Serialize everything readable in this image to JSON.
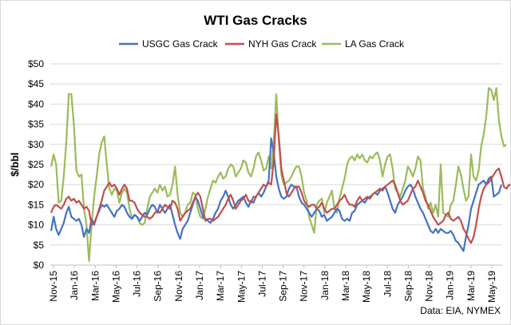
{
  "chart_data": {
    "type": "line",
    "title": "WTI Gas Cracks",
    "ylabel": "$/bbl",
    "xlabel": "",
    "ylim": [
      0,
      50
    ],
    "yticks": [
      0,
      5,
      10,
      15,
      20,
      25,
      30,
      35,
      40,
      45,
      50
    ],
    "ytick_labels": [
      "$0",
      "$5",
      "$10",
      "$15",
      "$20",
      "$25",
      "$30",
      "$35",
      "$40",
      "$45",
      "$50"
    ],
    "x_tick_labels": [
      "Nov-15",
      "Jan-16",
      "Mar-16",
      "May-16",
      "Jul-16",
      "Sep-16",
      "Nov-16",
      "Jan-17",
      "Mar-17",
      "May-17",
      "Jul-17",
      "Sep-17",
      "Nov-17",
      "Jan-18",
      "Mar-18",
      "May-18",
      "Jul-18",
      "Sep-18",
      "Nov-18",
      "Jan-19",
      "Mar-19",
      "May-19"
    ],
    "grid": true,
    "legend": "top",
    "source": "Data: EIA, NYMEX",
    "series": [
      {
        "name": "USGC Gas Crack",
        "color": "#4472c4",
        "values": [
          8.5,
          12,
          9,
          7.5,
          9,
          10.5,
          13,
          14.5,
          12,
          11.5,
          11,
          11.5,
          10,
          7,
          9,
          8,
          11.5,
          10,
          12,
          13.5,
          15,
          14.5,
          15,
          14,
          13,
          12,
          13.5,
          14,
          15,
          14.5,
          13,
          12,
          11.5,
          12.5,
          12,
          11,
          12,
          13,
          12.5,
          14,
          15,
          14.5,
          13,
          15,
          14,
          13,
          14,
          15,
          12.5,
          10,
          8,
          6.5,
          9,
          10,
          11,
          13,
          15,
          17,
          16,
          14,
          12,
          11.5,
          11,
          10.5,
          11.5,
          13,
          14,
          16,
          17,
          18.5,
          17,
          15,
          14,
          15,
          16,
          16.5,
          17,
          15.5,
          14.5,
          16,
          15.5,
          17,
          18,
          17,
          18,
          19.5,
          21,
          31.5,
          28,
          22,
          19,
          17,
          16.5,
          17,
          19,
          20,
          19.5,
          19.5,
          17,
          15.5,
          15,
          14,
          13,
          12,
          13,
          14,
          13.5,
          12,
          12.5,
          11,
          11.5,
          12,
          13,
          14,
          13.5,
          11.5,
          11,
          11.5,
          11,
          13,
          13.5,
          15,
          15.5,
          16,
          15.5,
          16.5,
          17,
          17.5,
          18,
          17.5,
          18.5,
          19,
          19.5,
          18,
          16,
          14,
          13,
          15,
          16,
          17,
          18.5,
          19.5,
          20,
          19,
          17,
          15.5,
          14,
          13,
          11.5,
          10,
          8.5,
          8,
          9,
          8,
          9,
          8.5,
          8,
          8,
          8.5,
          7.5,
          6,
          5.5,
          4.5,
          3.5,
          7,
          10,
          14,
          16,
          18,
          20,
          20.5,
          21,
          20,
          21.5,
          22,
          17,
          17.5,
          18,
          20
        ]
      },
      {
        "name": "NYH Gas Crack",
        "color": "#c0504d",
        "values": [
          13,
          14.5,
          15,
          14.5,
          14,
          15,
          16.5,
          17,
          16,
          16.5,
          15.5,
          16,
          15,
          14,
          14.5,
          13.5,
          10,
          10.5,
          12,
          14,
          16,
          18.5,
          19.5,
          20.5,
          19.5,
          20,
          19,
          17.5,
          19,
          20,
          19,
          16,
          16,
          15.5,
          14,
          13,
          12.5,
          12,
          12,
          11.5,
          12,
          13,
          13.5,
          13,
          14,
          15,
          14.5,
          14,
          16,
          15.5,
          14,
          11,
          12,
          13,
          13.5,
          14,
          15.5,
          17,
          18,
          17,
          14,
          11,
          11.5,
          11.5,
          11,
          11.5,
          12,
          13,
          14,
          15,
          16.5,
          17.5,
          16,
          14,
          15,
          16,
          16.5,
          17.5,
          16,
          15.5,
          17,
          17,
          18,
          19,
          20,
          19.5,
          20.5,
          20,
          26,
          37.5,
          32,
          24,
          21,
          18,
          17,
          18,
          19,
          19.5,
          19.5,
          18,
          16,
          15,
          14.5,
          15,
          15,
          14,
          14.5,
          15.5,
          14,
          13,
          13.5,
          14,
          14,
          15,
          16,
          16.5,
          17.5,
          16,
          15,
          15,
          14.5,
          16,
          17,
          16,
          16.5,
          17,
          16.5,
          17.5,
          18,
          18.5,
          19,
          18.5,
          19.5,
          20,
          20.5,
          21,
          20,
          18,
          16,
          15,
          15.5,
          16,
          17.5,
          19,
          19.5,
          21,
          19.5,
          18,
          16,
          15,
          13.5,
          12,
          11,
          10,
          10.5,
          11,
          12.5,
          13,
          11.5,
          11,
          11.5,
          12,
          11,
          9,
          8,
          6.5,
          5.5,
          7,
          10,
          14,
          17,
          19,
          20,
          20.5,
          21.5,
          22.5,
          23.5,
          24,
          22,
          19.5,
          19,
          20,
          19.5
        ]
      },
      {
        "name": "LA Gas Crack",
        "color": "#9bbb59",
        "values": [
          24.5,
          27.5,
          25,
          15.5,
          16,
          22,
          30.5,
          42.5,
          42.5,
          35,
          23.5,
          22,
          22.5,
          14,
          10,
          1,
          10,
          17,
          22,
          27.5,
          30.5,
          32,
          25,
          19,
          17.5,
          19,
          18.5,
          15.5,
          18,
          19,
          18,
          14,
          11.5,
          12.5,
          12,
          10.5,
          10,
          10.5,
          14,
          17,
          18,
          19,
          18,
          20,
          18.5,
          19.5,
          17,
          17.5,
          20,
          24.5,
          17.5,
          13,
          12,
          13,
          15,
          15.5,
          18,
          17.5,
          14,
          12,
          11.5,
          14,
          17,
          19,
          21,
          20.5,
          22,
          23,
          21.5,
          22,
          24,
          25,
          24.5,
          22,
          23,
          24,
          26,
          25.5,
          23,
          22,
          24,
          27,
          28,
          26,
          23.5,
          24,
          27,
          24,
          30.5,
          42.5,
          31,
          22.5,
          20,
          20.5,
          21,
          22,
          23.5,
          24.5,
          24.5,
          22,
          18,
          16,
          12,
          10,
          8,
          15,
          16,
          16.5,
          13,
          15.5,
          17,
          18.5,
          14,
          13,
          16.5,
          19,
          21.5,
          25,
          26.5,
          27,
          26,
          27.5,
          26.5,
          27.5,
          26,
          25.5,
          27,
          26.5,
          27.5,
          28,
          26,
          22,
          25,
          27,
          27.5,
          24,
          19,
          18,
          17,
          19,
          21,
          24.5,
          23.5,
          22,
          24,
          27,
          26,
          19,
          17,
          14,
          15.5,
          13,
          15,
          12,
          25,
          13,
          12.5,
          12,
          15,
          16,
          20,
          24.5,
          22.5,
          19,
          16,
          17,
          27.5,
          22,
          21,
          23.5,
          29.5,
          32.5,
          37,
          44,
          43.5,
          41,
          44,
          36,
          32,
          29.5,
          30
        ]
      }
    ]
  }
}
